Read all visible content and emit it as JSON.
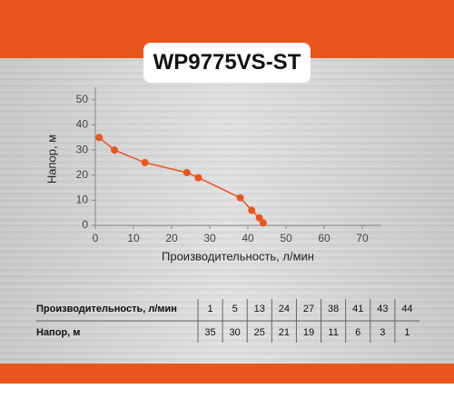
{
  "title": "WP9775VS-ST",
  "chart_data": {
    "type": "line",
    "x_label": "Производительность, л/мин",
    "y_label": "Напор, м",
    "x": [
      1,
      5,
      13,
      24,
      27,
      38,
      41,
      43,
      44
    ],
    "values": [
      35,
      30,
      25,
      21,
      19,
      11,
      6,
      3,
      1
    ],
    "color": "#e9561d",
    "xlim": [
      0,
      75
    ],
    "xticks": [
      0,
      10,
      20,
      30,
      40,
      50,
      60,
      70
    ],
    "ylim": [
      0,
      55
    ],
    "yticks": [
      0,
      10,
      20,
      30,
      40,
      50
    ]
  }
}
